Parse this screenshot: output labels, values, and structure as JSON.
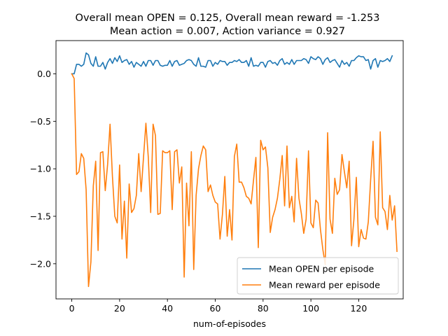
{
  "chart_data": {
    "type": "line",
    "title_line1": "Overall mean OPEN = 0.125, Overall mean reward = -1.253",
    "title_line2": "Mean action = 0.007, Action variance = 0.927",
    "xlabel": "num-of-episodes",
    "ylabel": "",
    "xlim": [
      -6.6,
      138.6
    ],
    "ylim": [
      -2.37,
      0.35
    ],
    "xticks": [
      0,
      20,
      40,
      60,
      80,
      100,
      120
    ],
    "xtick_labels": [
      "0",
      "20",
      "40",
      "60",
      "80",
      "100",
      "120"
    ],
    "yticks": [
      0.0,
      -0.5,
      -1.0,
      -1.5,
      -2.0
    ],
    "ytick_labels": [
      "0.0",
      "−0.5",
      "−1.0",
      "−1.5",
      "−2.0"
    ],
    "grid": false,
    "legend_position": "lower-right",
    "series": [
      {
        "name": "Mean OPEN per episode",
        "color": "#1f77b4",
        "values": [
          0.0,
          0.0,
          0.1,
          0.1,
          0.08,
          0.1,
          0.22,
          0.2,
          0.11,
          0.08,
          0.18,
          0.08,
          0.08,
          0.12,
          0.05,
          0.12,
          0.16,
          0.11,
          0.17,
          0.13,
          0.19,
          0.12,
          0.14,
          0.15,
          0.1,
          0.13,
          0.07,
          0.12,
          0.1,
          0.08,
          0.13,
          0.08,
          0.14,
          0.14,
          0.09,
          0.14,
          0.14,
          0.09,
          0.08,
          0.09,
          0.09,
          0.14,
          0.08,
          0.13,
          0.14,
          0.09,
          0.1,
          0.11,
          0.14,
          0.15,
          0.14,
          0.1,
          0.08,
          0.17,
          0.08,
          0.08,
          0.07,
          0.14,
          0.14,
          0.08,
          0.12,
          0.1,
          0.14,
          0.13,
          0.13,
          0.09,
          0.12,
          0.12,
          0.14,
          0.13,
          0.15,
          0.12,
          0.12,
          0.14,
          0.08,
          0.17,
          0.08,
          0.09,
          0.08,
          0.12,
          0.12,
          0.07,
          0.13,
          0.14,
          0.11,
          0.12,
          0.09,
          0.14,
          0.16,
          0.1,
          0.12,
          0.1,
          0.15,
          0.1,
          0.14,
          0.14,
          0.14,
          0.16,
          0.15,
          0.11,
          0.18,
          0.16,
          0.15,
          0.18,
          0.16,
          0.1,
          0.15,
          0.17,
          0.12,
          0.14,
          0.15,
          0.11,
          0.07,
          0.14,
          0.1,
          0.12,
          0.08,
          0.14,
          0.14,
          0.17,
          0.19,
          0.18,
          0.18,
          0.14,
          0.15,
          0.05,
          0.14,
          0.16,
          0.07,
          0.14,
          0.13,
          0.14,
          0.16,
          0.13,
          0.19
        ]
      },
      {
        "name": "Mean reward per episode",
        "color": "#ff7f0e",
        "values": [
          0.0,
          -0.05,
          -1.06,
          -1.03,
          -0.84,
          -0.89,
          -1.22,
          -2.24,
          -1.98,
          -1.18,
          -0.92,
          -1.86,
          -0.83,
          -0.82,
          -1.23,
          -0.95,
          -0.53,
          -1.08,
          -1.5,
          -1.57,
          -0.96,
          -1.74,
          -1.34,
          -1.94,
          -1.16,
          -1.46,
          -1.42,
          -1.28,
          -0.84,
          -1.24,
          -0.88,
          -0.52,
          -0.88,
          -1.46,
          -0.53,
          -0.65,
          -1.48,
          -1.47,
          -0.81,
          -0.83,
          -0.83,
          -0.81,
          -1.43,
          -0.82,
          -0.8,
          -1.15,
          -0.98,
          -2.14,
          -1.15,
          -1.6,
          -0.82,
          -2.06,
          -1.28,
          -1.0,
          -0.86,
          -0.76,
          -0.8,
          -1.24,
          -1.17,
          -1.28,
          -1.35,
          -1.37,
          -1.74,
          -1.48,
          -1.08,
          -1.71,
          -1.43,
          -1.75,
          -0.87,
          -0.74,
          -1.14,
          -1.14,
          -1.2,
          -1.29,
          -1.31,
          -1.37,
          -1.12,
          -0.88,
          -1.83,
          -0.7,
          -0.8,
          -0.77,
          -0.99,
          -1.67,
          -1.51,
          -1.43,
          -1.31,
          -1.11,
          -0.86,
          -1.39,
          -0.76,
          -1.41,
          -1.29,
          -1.56,
          -0.89,
          -1.31,
          -1.47,
          -1.68,
          -1.53,
          -0.81,
          -1.57,
          -1.62,
          -1.33,
          -1.36,
          -1.64,
          -1.85,
          -2.01,
          -0.62,
          -1.53,
          -1.68,
          -1.1,
          -1.27,
          -1.22,
          -0.85,
          -1.03,
          -1.2,
          -0.92,
          -1.81,
          -1.53,
          -1.09,
          -1.82,
          -1.64,
          -1.73,
          -1.74,
          -1.56,
          -1.11,
          -0.71,
          -1.51,
          -1.59,
          -0.61,
          -1.41,
          -1.45,
          -1.64,
          -1.28,
          -1.54,
          -1.39,
          -1.87
        ]
      }
    ]
  }
}
